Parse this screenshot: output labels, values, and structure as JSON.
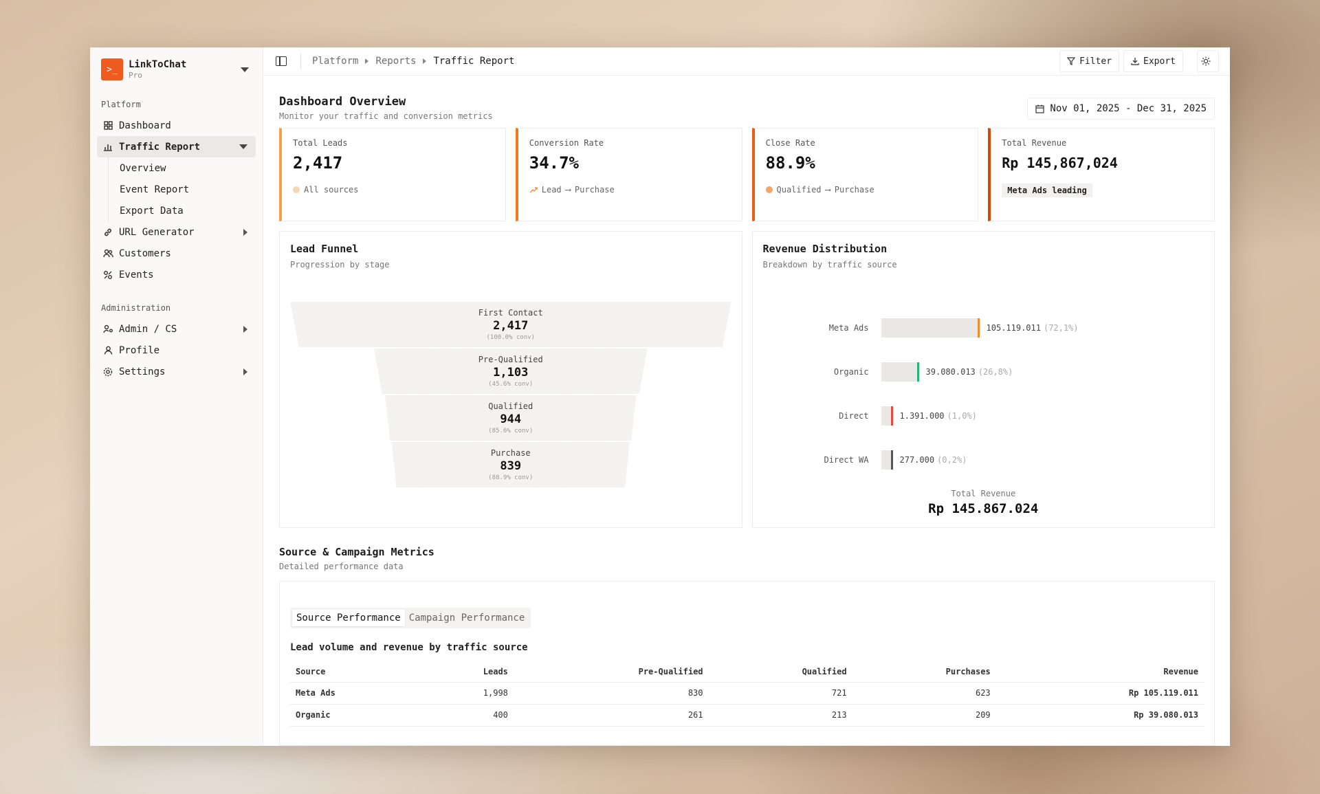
{
  "brand": {
    "name": "LinkToChat",
    "plan": "Pro",
    "logo_glyph": ">_"
  },
  "sidebar": {
    "section_platform": "Platform",
    "section_admin": "Administration",
    "items": {
      "dashboard": "Dashboard",
      "traffic_report": "Traffic Report",
      "traffic_sub": [
        "Overview",
        "Event Report",
        "Export Data"
      ],
      "url_generator": "URL Generator",
      "customers": "Customers",
      "events": "Events",
      "admin_cs": "Admin / CS",
      "profile": "Profile",
      "settings": "Settings"
    }
  },
  "breadcrumb": [
    "Platform",
    "Reports",
    "Traffic Report"
  ],
  "toolbar": {
    "filter": "Filter",
    "export": "Export"
  },
  "page": {
    "title": "Dashboard Overview",
    "subtitle": "Monitor your traffic and conversion metrics",
    "date_range": "Nov 01, 2025 - Dec 31, 2025"
  },
  "kpis": [
    {
      "label": "Total Leads",
      "value": "2,417",
      "foot": "All sources"
    },
    {
      "label": "Conversion Rate",
      "value": "34.7%",
      "foot_from": "Lead",
      "foot_to": "Purchase"
    },
    {
      "label": "Close Rate",
      "value": "88.9%",
      "foot_from": "Qualified",
      "foot_to": "Purchase"
    },
    {
      "label": "Total Revenue",
      "value": "Rp 145,867,024",
      "badge": "Meta Ads leading"
    }
  ],
  "accent_colors": {
    "k1": "#f5a046",
    "k2": "#f07a22",
    "k3": "#e85d19",
    "k4": "#d04a10"
  },
  "funnel": {
    "title": "Lead Funnel",
    "subtitle": "Progression by stage",
    "stages": [
      {
        "name": "First Contact",
        "value": "2,417",
        "conv": "(100.0% conv)"
      },
      {
        "name": "Pre-Qualified",
        "value": "1,103",
        "conv": "(45.6% conv)"
      },
      {
        "name": "Qualified",
        "value": "944",
        "conv": "(85.6% conv)"
      },
      {
        "name": "Purchase",
        "value": "839",
        "conv": "(88.9% conv)"
      }
    ]
  },
  "revenue": {
    "title": "Revenue Distribution",
    "subtitle": "Breakdown by traffic source",
    "rows": [
      {
        "source": "Meta Ads",
        "value": "105.119.011",
        "pct": "(72,1%)",
        "share": 72.1,
        "color": "#f08a2a"
      },
      {
        "source": "Organic",
        "value": "39.080.013",
        "pct": "(26,8%)",
        "share": 26.8,
        "color": "#22b573"
      },
      {
        "source": "Direct",
        "value": "1.391.000",
        "pct": "(1,0%)",
        "share": 1.0,
        "color": "#e8483a"
      },
      {
        "source": "Direct WA",
        "value": "277.000",
        "pct": "(0,2%)",
        "share": 0.2,
        "color": "#555555"
      }
    ],
    "total_label": "Total Revenue",
    "total_value": "Rp 145.867.024"
  },
  "metrics": {
    "title": "Source & Campaign Metrics",
    "subtitle": "Detailed performance data",
    "tabs": [
      "Source Performance",
      "Campaign Performance"
    ],
    "caption": "Lead volume and revenue by traffic source",
    "columns": [
      "Source",
      "Leads",
      "Pre-Qualified",
      "Qualified",
      "Purchases",
      "Revenue"
    ],
    "rows": [
      [
        "Meta Ads",
        "1,998",
        "830",
        "721",
        "623",
        "Rp 105.119.011"
      ],
      [
        "Organic",
        "400",
        "261",
        "213",
        "209",
        "Rp 39.080.013"
      ]
    ]
  }
}
